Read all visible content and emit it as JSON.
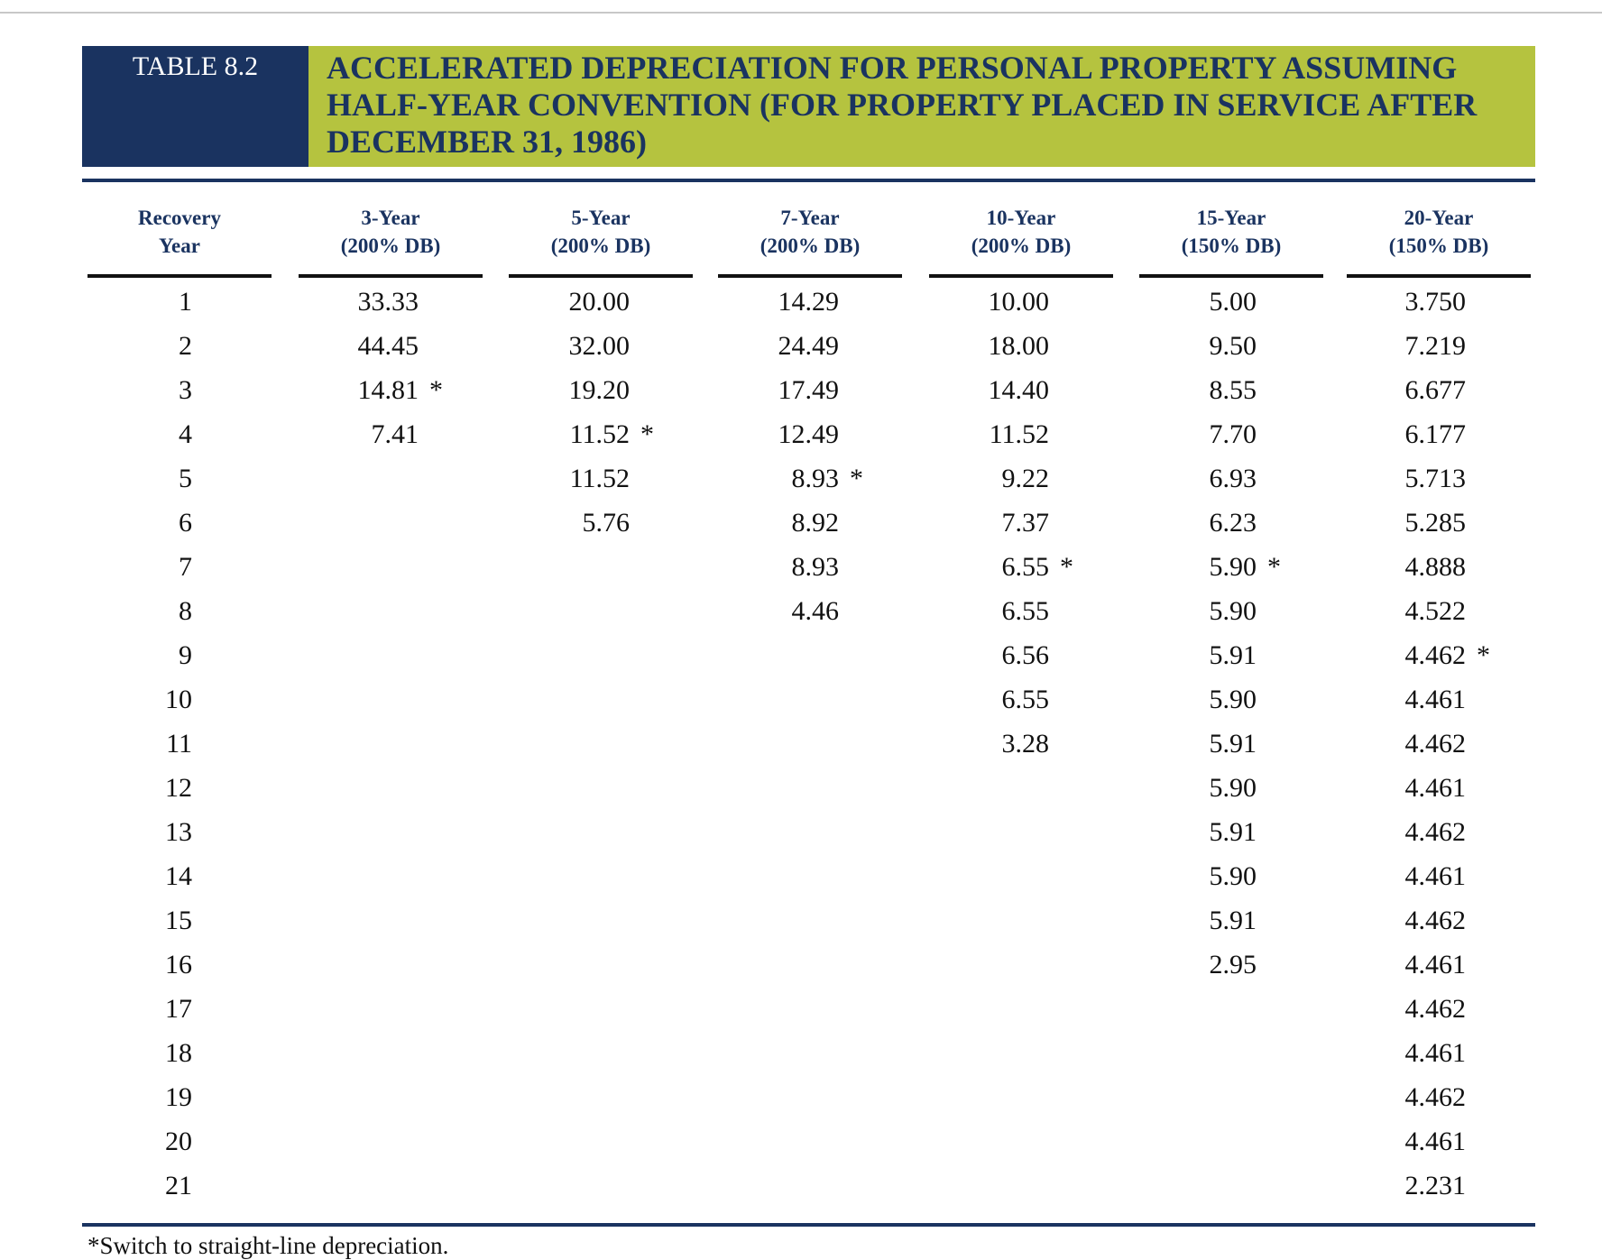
{
  "header": {
    "label": "TABLE 8.2",
    "title": "ACCELERATED DEPRECIATION FOR PERSONAL PROPERTY ASSUMING HALF-YEAR CONVENTION (FOR PROPERTY PLACED IN SERVICE AFTER DECEMBER 31, 1986)"
  },
  "table": {
    "columns": [
      {
        "header": [
          "Recovery",
          "Year"
        ],
        "cells": [
          {
            "text": "1"
          },
          {
            "text": "2"
          },
          {
            "text": "3"
          },
          {
            "text": "4"
          },
          {
            "text": "5"
          },
          {
            "text": "6"
          },
          {
            "text": "7"
          },
          {
            "text": "8"
          },
          {
            "text": "9"
          },
          {
            "text": "10"
          },
          {
            "text": "11"
          },
          {
            "text": "12"
          },
          {
            "text": "13"
          },
          {
            "text": "14"
          },
          {
            "text": "15"
          },
          {
            "text": "16"
          },
          {
            "text": "17"
          },
          {
            "text": "18"
          },
          {
            "text": "19"
          },
          {
            "text": "20"
          },
          {
            "text": "21"
          }
        ]
      },
      {
        "header": [
          "3-Year",
          "(200% DB)"
        ],
        "cells": [
          {
            "text": "33.33"
          },
          {
            "text": "44.45"
          },
          {
            "text": "14.81",
            "mark": "*"
          },
          {
            "text": "7.41"
          }
        ]
      },
      {
        "header": [
          "5-Year",
          "(200% DB)"
        ],
        "cells": [
          {
            "text": "20.00"
          },
          {
            "text": "32.00"
          },
          {
            "text": "19.20"
          },
          {
            "text": "11.52",
            "mark": "*"
          },
          {
            "text": "11.52"
          },
          {
            "text": "5.76"
          }
        ]
      },
      {
        "header": [
          "7-Year",
          "(200% DB)"
        ],
        "cells": [
          {
            "text": "14.29"
          },
          {
            "text": "24.49"
          },
          {
            "text": "17.49"
          },
          {
            "text": "12.49"
          },
          {
            "text": "8.93",
            "mark": "*"
          },
          {
            "text": "8.92"
          },
          {
            "text": "8.93"
          },
          {
            "text": "4.46"
          }
        ]
      },
      {
        "header": [
          "10-Year",
          "(200% DB)"
        ],
        "cells": [
          {
            "text": "10.00"
          },
          {
            "text": "18.00"
          },
          {
            "text": "14.40"
          },
          {
            "text": "11.52"
          },
          {
            "text": "9.22"
          },
          {
            "text": "7.37"
          },
          {
            "text": "6.55",
            "mark": "*"
          },
          {
            "text": "6.55"
          },
          {
            "text": "6.56"
          },
          {
            "text": "6.55"
          },
          {
            "text": "3.28"
          }
        ]
      },
      {
        "header": [
          "15-Year",
          "(150% DB)"
        ],
        "cells": [
          {
            "text": "5.00"
          },
          {
            "text": "9.50"
          },
          {
            "text": "8.55"
          },
          {
            "text": "7.70"
          },
          {
            "text": "6.93"
          },
          {
            "text": "6.23"
          },
          {
            "text": "5.90",
            "mark": "*"
          },
          {
            "text": "5.90"
          },
          {
            "text": "5.91"
          },
          {
            "text": "5.90"
          },
          {
            "text": "5.91"
          },
          {
            "text": "5.90"
          },
          {
            "text": "5.91"
          },
          {
            "text": "5.90"
          },
          {
            "text": "5.91"
          },
          {
            "text": "2.95"
          }
        ]
      },
      {
        "header": [
          "20-Year",
          "(150% DB)"
        ],
        "cells": [
          {
            "text": "3.750"
          },
          {
            "text": "7.219"
          },
          {
            "text": "6.677"
          },
          {
            "text": "6.177"
          },
          {
            "text": "5.713"
          },
          {
            "text": "5.285"
          },
          {
            "text": "4.888"
          },
          {
            "text": "4.522"
          },
          {
            "text": "4.462",
            "mark": "*"
          },
          {
            "text": "4.461"
          },
          {
            "text": "4.462"
          },
          {
            "text": "4.461"
          },
          {
            "text": "4.462"
          },
          {
            "text": "4.461"
          },
          {
            "text": "4.462"
          },
          {
            "text": "4.461"
          },
          {
            "text": "4.462"
          },
          {
            "text": "4.461"
          },
          {
            "text": "4.462"
          },
          {
            "text": "4.461"
          },
          {
            "text": "2.231"
          }
        ]
      }
    ]
  },
  "footnote": "*Switch to straight-line depreciation."
}
